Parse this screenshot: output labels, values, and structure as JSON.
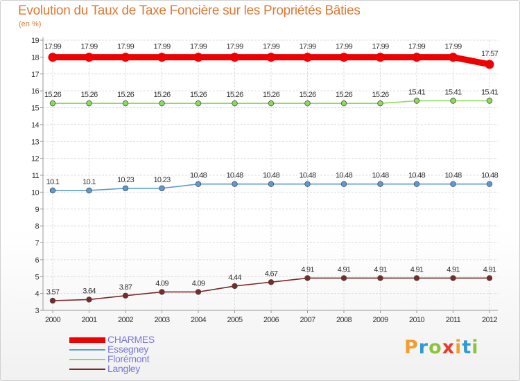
{
  "chart_data": {
    "type": "line",
    "title": "Evolution du Taux de Taxe Foncière sur les Propriétés Bâties",
    "ylabel": "(en %)",
    "xlabel": "",
    "ylim": [
      3,
      19
    ],
    "yticks": [
      3,
      4,
      5,
      6,
      7,
      8,
      9,
      10,
      11,
      12,
      13,
      14,
      15,
      16,
      17,
      18,
      19
    ],
    "categories": [
      "2000",
      "2001",
      "2002",
      "2003",
      "2004",
      "2005",
      "2006",
      "2007",
      "2008",
      "2009",
      "2010",
      "2011",
      "2012"
    ],
    "grid": true,
    "legend_position": "bottom-left",
    "series": [
      {
        "name": "CHARMES",
        "color": "#ee0000",
        "values": [
          17.99,
          17.99,
          17.99,
          17.99,
          17.99,
          17.99,
          17.99,
          17.99,
          17.99,
          17.99,
          17.99,
          17.99,
          17.57
        ],
        "labels": [
          "17.99",
          "17.99",
          "17.99",
          "17.99",
          "17.99",
          "17.99",
          "17.99",
          "17.99",
          "17.99",
          "17.99",
          "17.99",
          "17.99",
          "17.57"
        ]
      },
      {
        "name": "Essegney",
        "color": "#5b9bd5",
        "values": [
          10.1,
          10.1,
          10.23,
          10.23,
          10.48,
          10.48,
          10.48,
          10.48,
          10.48,
          10.48,
          10.48,
          10.48,
          10.48
        ],
        "labels": [
          "10.1",
          "10.1",
          "10.23",
          "10.23",
          "10.48",
          "10.48",
          "10.48",
          "10.48",
          "10.48",
          "10.48",
          "10.48",
          "10.48",
          "10.48"
        ]
      },
      {
        "name": "Florémont",
        "color": "#88dd55",
        "values": [
          15.26,
          15.26,
          15.26,
          15.26,
          15.26,
          15.26,
          15.26,
          15.26,
          15.26,
          15.26,
          15.41,
          15.41,
          15.41
        ],
        "labels": [
          "15.26",
          "15.26",
          "15.26",
          "15.26",
          "15.26",
          "15.26",
          "15.26",
          "15.26",
          "15.26",
          "15.26",
          "15.41",
          "15.41",
          "15.41"
        ]
      },
      {
        "name": "Langley",
        "color": "#7a2a2a",
        "values": [
          3.57,
          3.64,
          3.87,
          4.09,
          4.09,
          4.44,
          4.67,
          4.91,
          4.91,
          4.91,
          4.91,
          4.91,
          4.91
        ],
        "labels": [
          "3.57",
          "3.64",
          "3.87",
          "4.09",
          "4.09",
          "4.44",
          "4.67",
          "4.91",
          "4.91",
          "4.91",
          "4.91",
          "4.91",
          "4.91"
        ]
      }
    ]
  },
  "brand": {
    "letters": [
      "P",
      "r",
      "o",
      "x",
      "i",
      "t",
      "i"
    ],
    "colors": [
      "#f0a030",
      "#2e9ad8",
      "#8cc43c",
      "#e63c2a",
      "#f0a030",
      "#2e9ad8",
      "#8cc43c"
    ]
  }
}
